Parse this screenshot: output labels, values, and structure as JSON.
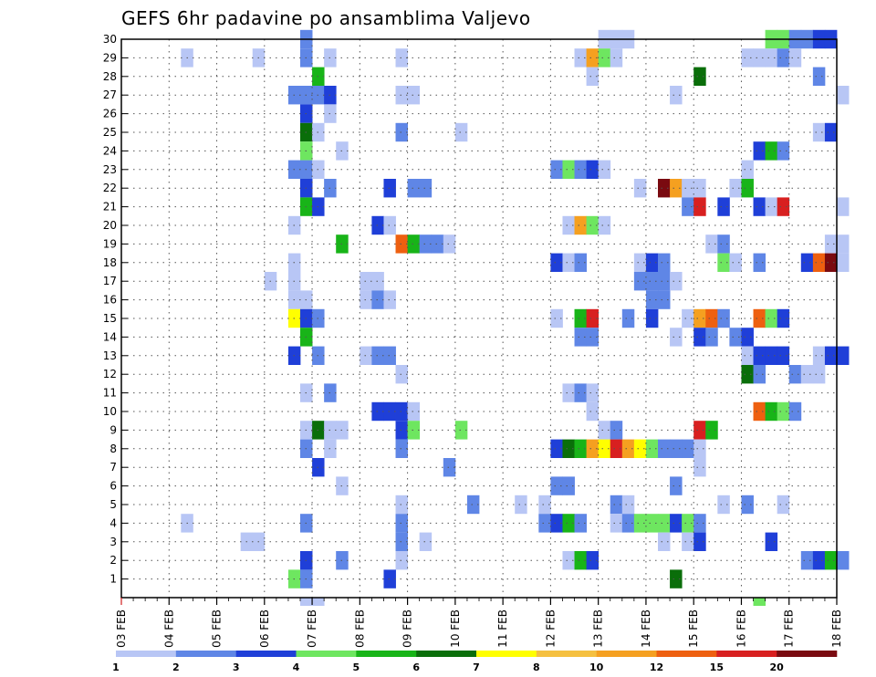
{
  "chart_data": {
    "type": "heatmap",
    "title": "GEFS 6hr padavine po ansamblima Valjevo",
    "xlabel": "",
    "ylabel": "",
    "x_tick_labels": [
      "03 FEB",
      "04 FEB",
      "05 FEB",
      "06 FEB",
      "07 FEB",
      "08 FEB",
      "09 FEB",
      "10 FEB",
      "11 FEB",
      "12 FEB",
      "13 FEB",
      "14 FEB",
      "15 FEB",
      "16 FEB",
      "17 FEB",
      "18 FEB"
    ],
    "y_tick_labels": [
      "1",
      "2",
      "3",
      "4",
      "5",
      "6",
      "7",
      "8",
      "9",
      "10",
      "11",
      "12",
      "13",
      "14",
      "15",
      "16",
      "17",
      "18",
      "19",
      "20",
      "21",
      "22",
      "23",
      "24",
      "25",
      "26",
      "27",
      "28",
      "29",
      "30"
    ],
    "x_range_steps": [
      0,
      60
    ],
    "y_range_members": [
      1,
      30
    ],
    "colorbar": {
      "labels": [
        "1",
        "2",
        "3",
        "4",
        "5",
        "6",
        "7",
        "8",
        "10",
        "12",
        "15",
        "20"
      ],
      "colors": [
        "#b8c6f5",
        "#5f86e6",
        "#1f3fd8",
        "#6ee660",
        "#18b418",
        "#0a6e0a",
        "#ffff00",
        "#f5c040",
        "#f5a020",
        "#ee6010",
        "#d82020",
        "#7a0a10"
      ]
    },
    "cells": [
      [
        15,
        30,
        2
      ],
      [
        40,
        30,
        1
      ],
      [
        41,
        30,
        1
      ],
      [
        42,
        30,
        1
      ],
      [
        54,
        30,
        4
      ],
      [
        55,
        30,
        4
      ],
      [
        56,
        30,
        2
      ],
      [
        57,
        30,
        2
      ],
      [
        58,
        30,
        3
      ],
      [
        59,
        30,
        3
      ],
      [
        66,
        30,
        5
      ],
      [
        5,
        29,
        1
      ],
      [
        11,
        29,
        1
      ],
      [
        15,
        29,
        2
      ],
      [
        17,
        29,
        1
      ],
      [
        23,
        29,
        1
      ],
      [
        38,
        29,
        1
      ],
      [
        39,
        29,
        9
      ],
      [
        40,
        29,
        4
      ],
      [
        41,
        29,
        1
      ],
      [
        52,
        29,
        1
      ],
      [
        53,
        29,
        1
      ],
      [
        54,
        29,
        1
      ],
      [
        55,
        29,
        2
      ],
      [
        56,
        29,
        1
      ],
      [
        16,
        28,
        5
      ],
      [
        39,
        28,
        1
      ],
      [
        48,
        28,
        6
      ],
      [
        58,
        28,
        2
      ],
      [
        14,
        27,
        2
      ],
      [
        15,
        27,
        2
      ],
      [
        16,
        27,
        2
      ],
      [
        17,
        27,
        3
      ],
      [
        23,
        27,
        1
      ],
      [
        24,
        27,
        1
      ],
      [
        46,
        27,
        1
      ],
      [
        60,
        27,
        1
      ],
      [
        15,
        26,
        3
      ],
      [
        17,
        26,
        1
      ],
      [
        15,
        25,
        6
      ],
      [
        16,
        25,
        1
      ],
      [
        23,
        25,
        2
      ],
      [
        28,
        25,
        1
      ],
      [
        58,
        25,
        1
      ],
      [
        59,
        25,
        3
      ],
      [
        15,
        24,
        4
      ],
      [
        18,
        24,
        1
      ],
      [
        53,
        24,
        3
      ],
      [
        54,
        24,
        5
      ],
      [
        55,
        24,
        2
      ],
      [
        14,
        23,
        2
      ],
      [
        15,
        23,
        2
      ],
      [
        16,
        23,
        1
      ],
      [
        36,
        23,
        2
      ],
      [
        37,
        23,
        4
      ],
      [
        38,
        23,
        2
      ],
      [
        39,
        23,
        3
      ],
      [
        40,
        23,
        1
      ],
      [
        52,
        23,
        1
      ],
      [
        15,
        22,
        3
      ],
      [
        17,
        22,
        2
      ],
      [
        22,
        22,
        3
      ],
      [
        24,
        22,
        2
      ],
      [
        25,
        22,
        2
      ],
      [
        43,
        22,
        1
      ],
      [
        45,
        22,
        12
      ],
      [
        46,
        22,
        9
      ],
      [
        47,
        22,
        1
      ],
      [
        48,
        22,
        1
      ],
      [
        51,
        22,
        1
      ],
      [
        52,
        22,
        5
      ],
      [
        15,
        21,
        5
      ],
      [
        16,
        21,
        3
      ],
      [
        47,
        21,
        2
      ],
      [
        48,
        21,
        11
      ],
      [
        50,
        21,
        3
      ],
      [
        53,
        21,
        3
      ],
      [
        54,
        21,
        1
      ],
      [
        55,
        21,
        11
      ],
      [
        60,
        21,
        1
      ],
      [
        14,
        20,
        1
      ],
      [
        21,
        20,
        3
      ],
      [
        22,
        20,
        1
      ],
      [
        37,
        20,
        1
      ],
      [
        38,
        20,
        9
      ],
      [
        39,
        20,
        4
      ],
      [
        40,
        20,
        1
      ],
      [
        18,
        19,
        5
      ],
      [
        23,
        19,
        10
      ],
      [
        24,
        19,
        5
      ],
      [
        25,
        19,
        2
      ],
      [
        26,
        19,
        2
      ],
      [
        27,
        19,
        1
      ],
      [
        49,
        19,
        1
      ],
      [
        50,
        19,
        2
      ],
      [
        59,
        19,
        1
      ],
      [
        60,
        19,
        1
      ],
      [
        14,
        18,
        1
      ],
      [
        36,
        18,
        3
      ],
      [
        37,
        18,
        1
      ],
      [
        38,
        18,
        2
      ],
      [
        43,
        18,
        1
      ],
      [
        44,
        18,
        3
      ],
      [
        45,
        18,
        2
      ],
      [
        50,
        18,
        4
      ],
      [
        51,
        18,
        1
      ],
      [
        53,
        18,
        2
      ],
      [
        57,
        18,
        3
      ],
      [
        58,
        18,
        10
      ],
      [
        59,
        18,
        12
      ],
      [
        60,
        18,
        1
      ],
      [
        12,
        17,
        1
      ],
      [
        14,
        17,
        1
      ],
      [
        20,
        17,
        1
      ],
      [
        21,
        17,
        1
      ],
      [
        43,
        17,
        2
      ],
      [
        44,
        17,
        2
      ],
      [
        45,
        17,
        2
      ],
      [
        46,
        17,
        1
      ],
      [
        14,
        16,
        1
      ],
      [
        15,
        16,
        1
      ],
      [
        20,
        16,
        1
      ],
      [
        21,
        16,
        2
      ],
      [
        22,
        16,
        1
      ],
      [
        44,
        16,
        2
      ],
      [
        45,
        16,
        2
      ],
      [
        14,
        15,
        7
      ],
      [
        15,
        15,
        3
      ],
      [
        16,
        15,
        2
      ],
      [
        36,
        15,
        1
      ],
      [
        38,
        15,
        5
      ],
      [
        39,
        15,
        11
      ],
      [
        42,
        15,
        2
      ],
      [
        44,
        15,
        3
      ],
      [
        47,
        15,
        1
      ],
      [
        48,
        15,
        9
      ],
      [
        49,
        15,
        10
      ],
      [
        50,
        15,
        2
      ],
      [
        53,
        15,
        10
      ],
      [
        54,
        15,
        4
      ],
      [
        55,
        15,
        3
      ],
      [
        15,
        14,
        5
      ],
      [
        38,
        14,
        2
      ],
      [
        39,
        14,
        2
      ],
      [
        46,
        14,
        1
      ],
      [
        48,
        14,
        3
      ],
      [
        49,
        14,
        2
      ],
      [
        51,
        14,
        2
      ],
      [
        52,
        14,
        3
      ],
      [
        14,
        13,
        3
      ],
      [
        16,
        13,
        2
      ],
      [
        20,
        13,
        1
      ],
      [
        21,
        13,
        2
      ],
      [
        22,
        13,
        2
      ],
      [
        52,
        13,
        1
      ],
      [
        53,
        13,
        3
      ],
      [
        54,
        13,
        3
      ],
      [
        55,
        13,
        3
      ],
      [
        58,
        13,
        1
      ],
      [
        59,
        13,
        3
      ],
      [
        60,
        13,
        3
      ],
      [
        23,
        12,
        1
      ],
      [
        52,
        12,
        6
      ],
      [
        53,
        12,
        2
      ],
      [
        56,
        12,
        2
      ],
      [
        57,
        12,
        1
      ],
      [
        58,
        12,
        1
      ],
      [
        15,
        11,
        1
      ],
      [
        17,
        11,
        2
      ],
      [
        37,
        11,
        1
      ],
      [
        38,
        11,
        2
      ],
      [
        39,
        11,
        1
      ],
      [
        21,
        10,
        3
      ],
      [
        22,
        10,
        3
      ],
      [
        23,
        10,
        3
      ],
      [
        24,
        10,
        1
      ],
      [
        39,
        10,
        1
      ],
      [
        53,
        10,
        10
      ],
      [
        54,
        10,
        5
      ],
      [
        55,
        10,
        4
      ],
      [
        56,
        10,
        2
      ],
      [
        15,
        9,
        1
      ],
      [
        16,
        9,
        6
      ],
      [
        17,
        9,
        1
      ],
      [
        18,
        9,
        1
      ],
      [
        23,
        9,
        3
      ],
      [
        24,
        9,
        4
      ],
      [
        28,
        9,
        4
      ],
      [
        40,
        9,
        1
      ],
      [
        41,
        9,
        2
      ],
      [
        48,
        9,
        11
      ],
      [
        49,
        9,
        5
      ],
      [
        15,
        8,
        2
      ],
      [
        17,
        8,
        1
      ],
      [
        23,
        8,
        2
      ],
      [
        36,
        8,
        3
      ],
      [
        37,
        8,
        6
      ],
      [
        38,
        8,
        5
      ],
      [
        39,
        8,
        9
      ],
      [
        40,
        8,
        7
      ],
      [
        41,
        8,
        11
      ],
      [
        42,
        8,
        9
      ],
      [
        43,
        8,
        7
      ],
      [
        44,
        8,
        4
      ],
      [
        45,
        8,
        2
      ],
      [
        46,
        8,
        2
      ],
      [
        47,
        8,
        2
      ],
      [
        48,
        8,
        1
      ],
      [
        16,
        7,
        3
      ],
      [
        27,
        7,
        2
      ],
      [
        48,
        7,
        1
      ],
      [
        18,
        6,
        1
      ],
      [
        36,
        6,
        2
      ],
      [
        37,
        6,
        2
      ],
      [
        46,
        6,
        2
      ],
      [
        23,
        5,
        1
      ],
      [
        29,
        5,
        2
      ],
      [
        33,
        5,
        1
      ],
      [
        35,
        5,
        1
      ],
      [
        41,
        5,
        2
      ],
      [
        42,
        5,
        1
      ],
      [
        50,
        5,
        1
      ],
      [
        52,
        5,
        2
      ],
      [
        55,
        5,
        1
      ],
      [
        5,
        4,
        1
      ],
      [
        15,
        4,
        2
      ],
      [
        23,
        4,
        2
      ],
      [
        35,
        4,
        2
      ],
      [
        36,
        4,
        3
      ],
      [
        37,
        4,
        5
      ],
      [
        38,
        4,
        2
      ],
      [
        41,
        4,
        1
      ],
      [
        42,
        4,
        2
      ],
      [
        43,
        4,
        4
      ],
      [
        44,
        4,
        4
      ],
      [
        45,
        4,
        4
      ],
      [
        46,
        4,
        3
      ],
      [
        47,
        4,
        4
      ],
      [
        48,
        4,
        2
      ],
      [
        10,
        3,
        1
      ],
      [
        11,
        3,
        1
      ],
      [
        23,
        3,
        2
      ],
      [
        25,
        3,
        1
      ],
      [
        45,
        3,
        1
      ],
      [
        47,
        3,
        1
      ],
      [
        48,
        3,
        3
      ],
      [
        54,
        3,
        3
      ],
      [
        15,
        2,
        3
      ],
      [
        18,
        2,
        2
      ],
      [
        23,
        2,
        1
      ],
      [
        37,
        2,
        1
      ],
      [
        38,
        2,
        5
      ],
      [
        39,
        2,
        3
      ],
      [
        57,
        2,
        2
      ],
      [
        58,
        2,
        3
      ],
      [
        59,
        2,
        5
      ],
      [
        60,
        2,
        2
      ],
      [
        14,
        1,
        4
      ],
      [
        15,
        1,
        2
      ],
      [
        22,
        1,
        3
      ],
      [
        46,
        1,
        6
      ],
      [
        15,
        0,
        1
      ],
      [
        16,
        0,
        1
      ],
      [
        53,
        0,
        4
      ]
    ]
  }
}
